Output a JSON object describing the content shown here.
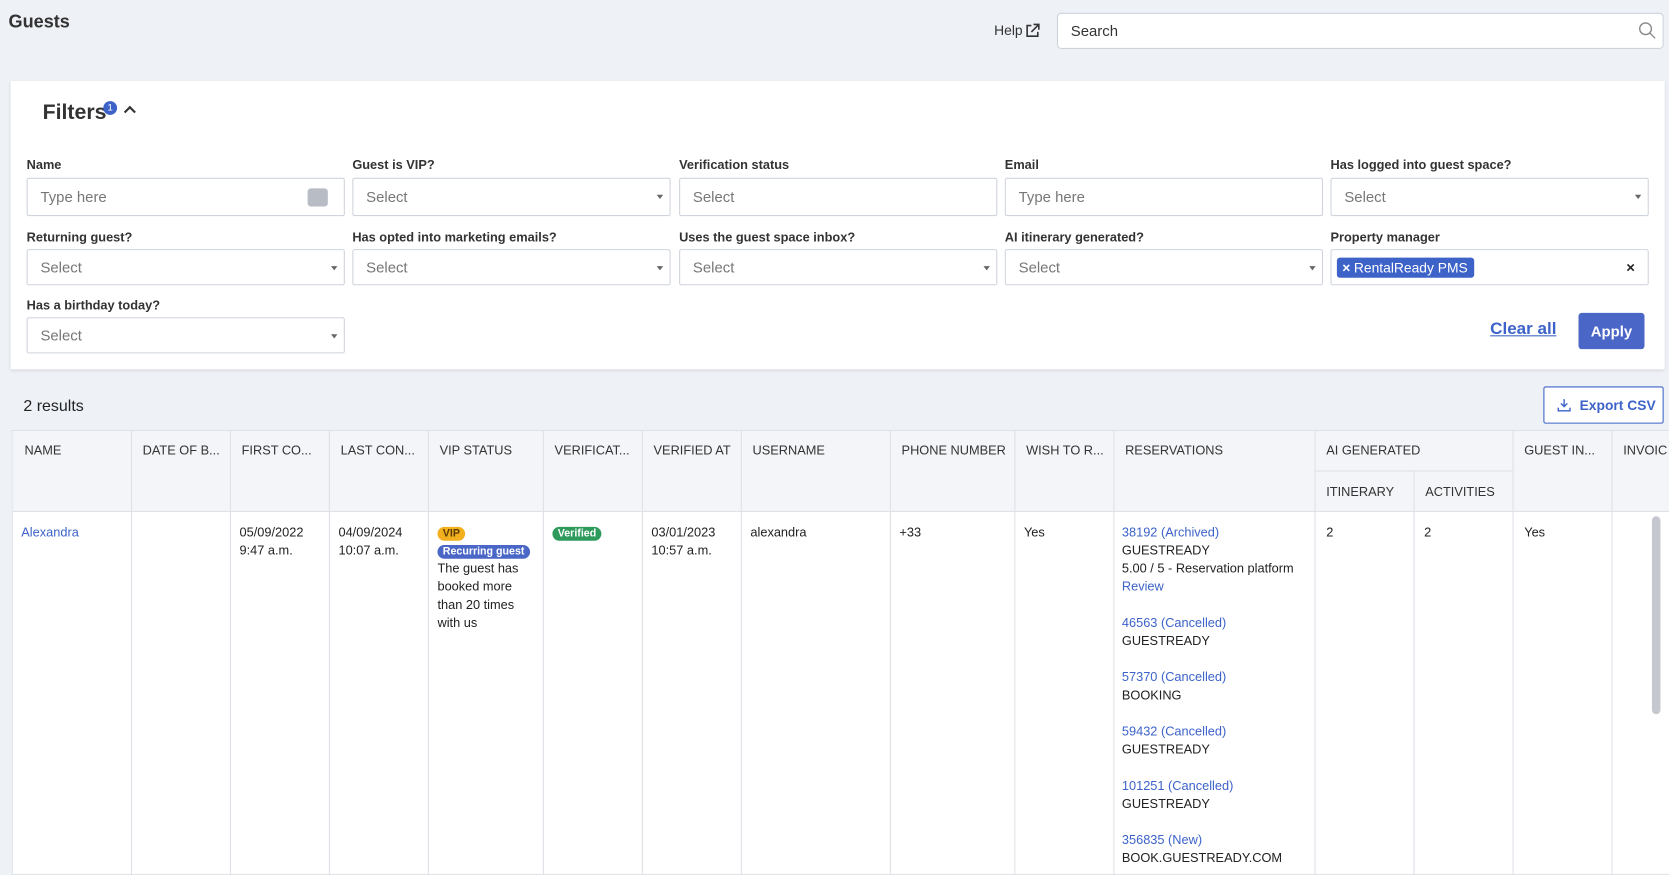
{
  "header": {
    "title": "Guests",
    "help": "Help",
    "search_placeholder": "Search"
  },
  "filters": {
    "title": "Filters",
    "badge": "1",
    "fields": [
      {
        "label": "Name",
        "placeholder": "Type here"
      },
      {
        "label": "Guest is VIP?",
        "placeholder": "Select"
      },
      {
        "label": "Verification status",
        "placeholder": "Select"
      },
      {
        "label": "Email",
        "placeholder": "Type here"
      },
      {
        "label": "Has logged into guest space?",
        "placeholder": "Select"
      },
      {
        "label": "Returning guest?",
        "placeholder": "Select"
      },
      {
        "label": "Has opted into marketing emails?",
        "placeholder": "Select"
      },
      {
        "label": "Uses the guest space inbox?",
        "placeholder": "Select"
      },
      {
        "label": "AI itinerary generated?",
        "placeholder": "Select"
      },
      {
        "label": "Property manager",
        "chips": [
          "RentalReady PMS"
        ]
      },
      {
        "label": "Has a birthday today?",
        "placeholder": "Select"
      }
    ],
    "clear": "Clear all",
    "apply": "Apply"
  },
  "results": {
    "count": "2 results",
    "export": "Export CSV"
  },
  "table": {
    "headers": [
      "NAME",
      "DATE OF B...",
      "FIRST CO...",
      "LAST CON...",
      "VIP STATUS",
      "VERIFICAT...",
      "VERIFIED AT",
      "USERNAME",
      "PHONE NUMBER",
      "WISH TO R...",
      "RESERVATIONS",
      "AI GENERATED",
      "GUEST IN...",
      "INVOIC"
    ],
    "sub_headers": [
      "ITINERARY",
      "ACTIVITIES"
    ],
    "rows": [
      {
        "name": "Alexandra",
        "first_contact": [
          "05/09/2022",
          "9:47 a.m."
        ],
        "last_contact": [
          "04/09/2024",
          "10:07 a.m."
        ],
        "vip_badges": [
          "VIP",
          "Recurring guest"
        ],
        "vip_note": "The guest has booked more than 20 times with us",
        "verification": "Verified",
        "verified_at": [
          "03/01/2023",
          "10:57 a.m."
        ],
        "username": "alexandra",
        "phone": "+33",
        "wish": "Yes",
        "reservations": [
          {
            "link": "38192 (Archived)",
            "lines": [
              "GUESTREADY",
              "5.00 / 5 - Reservation platform"
            ],
            "review": "Review"
          },
          {
            "link": "46563 (Cancelled)",
            "lines": [
              "GUESTREADY"
            ]
          },
          {
            "link": "57370 (Cancelled)",
            "lines": [
              "BOOKING"
            ]
          },
          {
            "link": "59432 (Cancelled)",
            "lines": [
              "GUESTREADY"
            ]
          },
          {
            "link": "101251 (Cancelled)",
            "lines": [
              "GUESTREADY"
            ]
          },
          {
            "link": "356835 (New)",
            "lines": [
              "BOOK.GUESTREADY.COM"
            ]
          }
        ],
        "itinerary": "2",
        "activities": "2",
        "guest_in": "Yes"
      }
    ]
  }
}
